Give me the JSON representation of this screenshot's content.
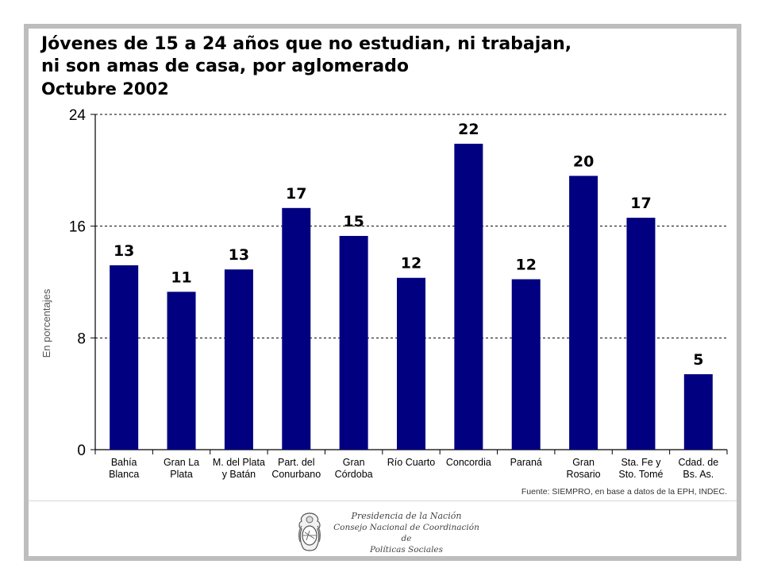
{
  "header": {
    "title_line1": "Jóvenes de 15 a 24 años que no estudian, ni trabajan,",
    "title_line2": "ni son amas de casa, por aglomerado",
    "subtitle": "Octubre 2002"
  },
  "chart_data": {
    "type": "bar",
    "title": "Jóvenes de 15 a 24 años que no estudian, ni trabajan, ni son amas de casa, por aglomerado",
    "subtitle": "Octubre 2002",
    "xlabel": "",
    "ylabel": "En porcentajes",
    "ylim": [
      0,
      24
    ],
    "yticks": [
      0,
      8,
      16,
      24
    ],
    "grid": true,
    "bar_color": "#000080",
    "categories": [
      [
        "Bahía",
        "Blanca"
      ],
      [
        "Gran La",
        "Plata"
      ],
      [
        "M. del Plata",
        "y Batán"
      ],
      [
        "Part. del",
        "Conurbano"
      ],
      [
        "Gran",
        "Córdoba"
      ],
      [
        "Río Cuarto"
      ],
      [
        "Concordia"
      ],
      [
        "Paraná"
      ],
      [
        "Gran",
        "Rosario"
      ],
      [
        "Sta. Fe y",
        "Sto. Tomé"
      ],
      [
        "Cdad. de",
        "Bs. As."
      ]
    ],
    "values": [
      13.2,
      11.3,
      12.9,
      17.3,
      15.3,
      12.3,
      21.9,
      12.2,
      19.6,
      16.6,
      5.4
    ],
    "data_labels": [
      "13",
      "11",
      "13",
      "17",
      "15",
      "12",
      "22",
      "12",
      "20",
      "17",
      "5"
    ]
  },
  "footer": {
    "source": "Fuente: SIEMPRO, en base a datos de la EPH, INDEC.",
    "logo_line1": "Presidencia de la Nación",
    "logo_line2": "Consejo Nacional de Coordinación de",
    "logo_line3": "Políticas Sociales"
  }
}
